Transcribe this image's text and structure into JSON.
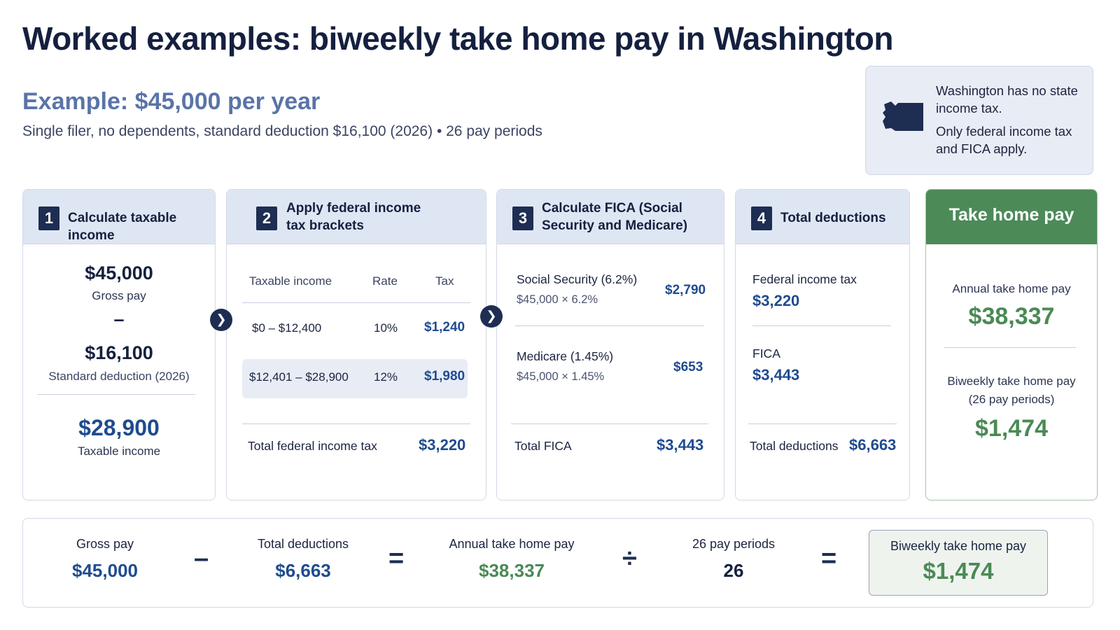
{
  "title": "Worked examples: biweekly take home pay in Washington",
  "example": {
    "heading": "Example: $45,000 per year",
    "assumptions": "Single filer, no dependents, standard deduction $16,100 (2026)  •  26 pay periods"
  },
  "note": {
    "line1": "Washington has no state income tax.",
    "line2": "Only federal income tax and FICA apply.",
    "map_icon": "washington-state-map-icon"
  },
  "step1": {
    "num": "1",
    "label": "Calculate taxable income",
    "gross_value": "$45,000",
    "gross_label": "Gross pay",
    "minus": "–",
    "deduction_value": "$16,100",
    "deduction_label": "Standard deduction (2026)",
    "taxable_value": "$28,900",
    "taxable_label": "Taxable income"
  },
  "step2": {
    "num": "2",
    "label": "Apply federal income tax brackets",
    "col_income": "Taxable income",
    "col_rate": "Rate",
    "col_tax": "Tax",
    "rows": [
      {
        "range": "$0 – $12,400",
        "rate": "10%",
        "tax": "$1,240"
      },
      {
        "range": "$12,401 – $28,900",
        "rate": "12%",
        "tax": "$1,980"
      }
    ],
    "total_label": "Total federal income tax",
    "total_value": "$3,220"
  },
  "step3": {
    "num": "3",
    "label": "Calculate FICA (Social Security and Medicare)",
    "ss_label": "Social Security (6.2%)",
    "ss_calc": "$45,000 × 6.2%",
    "ss_value": "$2,790",
    "med_label": "Medicare (1.45%)",
    "med_calc": "$45,000 × 1.45%",
    "med_value": "$653",
    "total_label": "Total FICA",
    "total_value": "$3,443"
  },
  "step4": {
    "num": "4",
    "label": "Total deductions",
    "fed_label": "Federal income tax",
    "fed_value": "$3,220",
    "fica_label": "FICA",
    "fica_value": "$3,443",
    "total_label": "Total deductions",
    "total_value": "$6,663"
  },
  "take_home": {
    "title": "Take home pay",
    "annual_label": "Annual take home pay",
    "annual_value": "$38,337",
    "biweekly_label_1": "Biweekly take home pay",
    "biweekly_label_2": "(26 pay periods)",
    "biweekly_value": "$1,474"
  },
  "summary": {
    "gross_label": "Gross pay",
    "gross_value": "$45,000",
    "op_minus": "–",
    "deductions_label": "Total deductions",
    "deductions_value": "$6,663",
    "op_equals": "=",
    "annual_label": "Annual take home pay",
    "annual_value": "$38,337",
    "op_divide": "÷",
    "periods_label": "26 pay periods",
    "periods_value": "26",
    "op_equals2": "=",
    "biweekly_label": "Biweekly take home pay",
    "biweekly_value": "$1,474"
  },
  "colors": {
    "navy": "#1e2d52",
    "blue": "#1f4b8f",
    "green": "#4a8a55",
    "header_bg": "#dfe6f3"
  }
}
